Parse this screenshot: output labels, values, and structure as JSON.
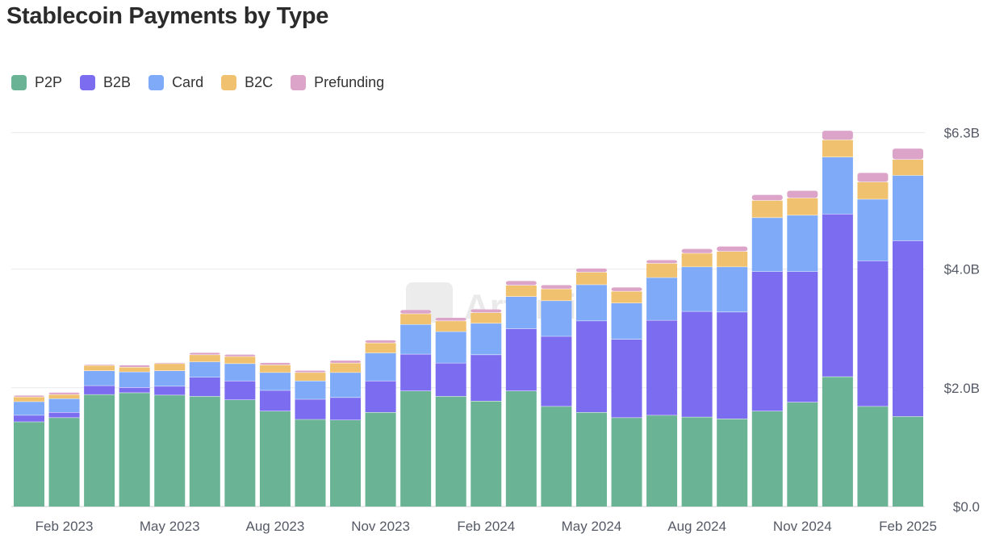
{
  "chart_data": {
    "type": "bar",
    "stacked": true,
    "title": "Stablecoin Payments by Type",
    "xlabel": "",
    "ylabel": "",
    "ylim": [
      0,
      6.3
    ],
    "y_unit": "$B",
    "y_ticks": [
      "$0.0",
      "$2.0B",
      "$4.0B",
      "$6.3B"
    ],
    "y_tick_values": [
      0,
      2.0,
      4.0,
      6.3
    ],
    "y_axis_side": "right",
    "grid": true,
    "legend_position": "top-left",
    "watermark": "Artemis",
    "categories": [
      "Jan 2023",
      "Feb 2023",
      "Mar 2023",
      "Apr 2023",
      "May 2023",
      "Jun 2023",
      "Jul 2023",
      "Aug 2023",
      "Sep 2023",
      "Oct 2023",
      "Nov 2023",
      "Dec 2023",
      "Jan 2024",
      "Feb 2024",
      "Mar 2024",
      "Apr 2024",
      "May 2024",
      "Jun 2024",
      "Jul 2024",
      "Aug 2024",
      "Sep 2024",
      "Oct 2024",
      "Nov 2024",
      "Dec 2024",
      "Jan 2025",
      "Feb 2025"
    ],
    "x_tick_labels": [
      "Feb 2023",
      "May 2023",
      "Aug 2023",
      "Nov 2023",
      "Feb 2024",
      "May 2024",
      "Aug 2024",
      "Nov 2024",
      "Feb 2025"
    ],
    "x_tick_indices": [
      1,
      4,
      7,
      10,
      13,
      16,
      19,
      22,
      25
    ],
    "series": [
      {
        "name": "P2P",
        "color": "#6bb395",
        "values": [
          1.43,
          1.5,
          1.89,
          1.92,
          1.88,
          1.86,
          1.8,
          1.61,
          1.47,
          1.46,
          1.59,
          1.95,
          1.86,
          1.78,
          1.95,
          1.69,
          1.59,
          1.5,
          1.54,
          1.51,
          1.48,
          1.61,
          1.76,
          2.19,
          1.69,
          1.52
        ]
      },
      {
        "name": "B2B",
        "color": "#7b6cf0",
        "values": [
          0.11,
          0.09,
          0.15,
          0.09,
          0.15,
          0.32,
          0.32,
          0.35,
          0.34,
          0.38,
          0.53,
          0.62,
          0.56,
          0.78,
          1.05,
          1.18,
          1.54,
          1.32,
          1.6,
          1.78,
          1.8,
          2.35,
          2.2,
          2.74,
          2.45,
          2.96
        ]
      },
      {
        "name": "Card",
        "color": "#7eaaf7",
        "values": [
          0.23,
          0.23,
          0.25,
          0.26,
          0.26,
          0.26,
          0.29,
          0.3,
          0.31,
          0.42,
          0.47,
          0.5,
          0.53,
          0.53,
          0.54,
          0.6,
          0.61,
          0.61,
          0.72,
          0.75,
          0.76,
          0.91,
          0.95,
          0.96,
          1.04,
          1.1
        ]
      },
      {
        "name": "B2C",
        "color": "#f0c270",
        "values": [
          0.08,
          0.07,
          0.09,
          0.08,
          0.12,
          0.12,
          0.12,
          0.13,
          0.14,
          0.16,
          0.17,
          0.18,
          0.18,
          0.18,
          0.19,
          0.2,
          0.21,
          0.2,
          0.24,
          0.23,
          0.26,
          0.29,
          0.29,
          0.29,
          0.29,
          0.27
        ]
      },
      {
        "name": "Prefunding",
        "color": "#dba4c8",
        "values": [
          0.02,
          0.03,
          0.01,
          0.03,
          0.01,
          0.03,
          0.03,
          0.03,
          0.03,
          0.04,
          0.04,
          0.06,
          0.05,
          0.05,
          0.07,
          0.06,
          0.06,
          0.06,
          0.05,
          0.07,
          0.08,
          0.09,
          0.12,
          0.15,
          0.15,
          0.18
        ]
      }
    ]
  }
}
